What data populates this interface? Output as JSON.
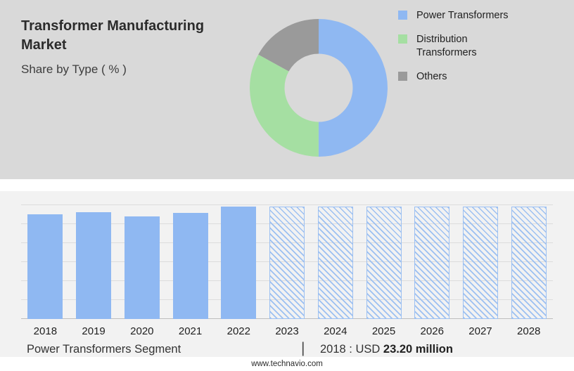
{
  "header": {
    "title": "Transformer Manufacturing Market",
    "subtitle": "Share by Type ( % )"
  },
  "summary": {
    "segment_label": "Power Transformers Segment",
    "separator": "|",
    "value_prefix": "2018 : USD ",
    "value_bold": "23.20 million"
  },
  "footer": {
    "website": "www.technavio.com"
  },
  "colors": {
    "top_background": "#d9d9d9",
    "panel_background": "#f2f2f2",
    "power_blue": "#8FB8F2",
    "distribution_green": "#A5DFA2",
    "others_gray": "#9A9A9A"
  },
  "chart_data": [
    {
      "type": "pie",
      "title": "Share by Type ( % )",
      "donut": true,
      "legend_position": "right",
      "slices": [
        {
          "label": "Power Transformers",
          "value": 50,
          "color": "#8FB8F2"
        },
        {
          "label": "Distribution Transformers",
          "value": 33,
          "color": "#A5DFA2"
        },
        {
          "label": "Others",
          "value": 17,
          "color": "#9A9A9A"
        }
      ]
    },
    {
      "type": "bar",
      "title": "Power Transformers Segment",
      "categories": [
        "2018",
        "2019",
        "2020",
        "2021",
        "2022",
        "2023",
        "2024",
        "2025",
        "2026",
        "2027",
        "2028"
      ],
      "values": [
        92,
        94,
        90,
        93,
        99,
        99,
        99,
        99,
        99,
        99,
        99
      ],
      "values_unit": "percent_of_plot_height_estimated",
      "forecast_mask": [
        false,
        false,
        false,
        false,
        false,
        true,
        true,
        true,
        true,
        true,
        true
      ],
      "annotation": "2018 : USD 23.20 million",
      "xlabel": "",
      "ylabel": "",
      "y_axis_labels_visible": false,
      "grid": true,
      "gridline_count": 7,
      "bar_color": "#8FB8F2",
      "hatch_color": "#9CC0F2"
    }
  ]
}
